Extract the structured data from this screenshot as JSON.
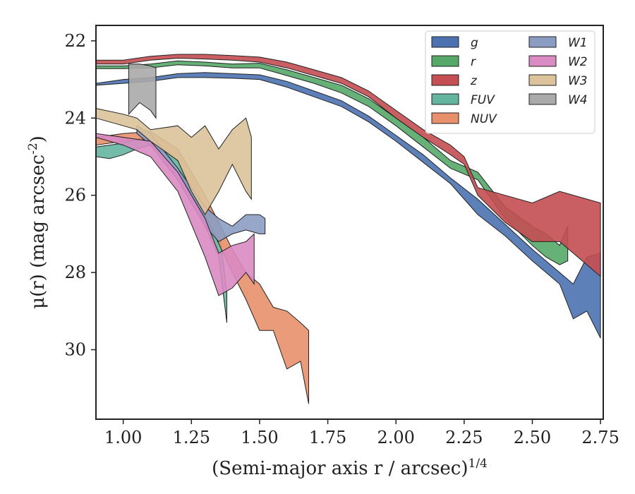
{
  "chart_data": {
    "type": "area",
    "title": "",
    "xlabel": "(Semi-major axis r / arcsec)^{1/4}",
    "ylabel": "μ(r) (mag arcsec^{-2})",
    "xlim": [
      0.9,
      2.76
    ],
    "ylim": [
      31.8,
      21.6
    ],
    "y_inverted": true,
    "xticks": [
      1.0,
      1.25,
      1.5,
      1.75,
      2.0,
      2.25,
      2.5,
      2.75
    ],
    "xtick_labels": [
      "1.00",
      "1.25",
      "1.50",
      "1.75",
      "2.00",
      "2.25",
      "2.50",
      "2.75"
    ],
    "yticks": [
      22,
      24,
      26,
      28,
      30
    ],
    "ytick_labels": [
      "22",
      "24",
      "26",
      "28",
      "30"
    ],
    "grid": false,
    "legend_position": "top-right",
    "legend_columns": 2,
    "series": [
      {
        "name": "g",
        "color": "#4c72b0",
        "x": [
          0.9,
          1.0,
          1.1,
          1.2,
          1.3,
          1.4,
          1.5,
          1.6,
          1.7,
          1.8,
          1.9,
          2.0,
          2.1,
          2.2,
          2.3,
          2.4,
          2.5,
          2.6,
          2.65,
          2.7,
          2.75
        ],
        "top": [
          23.1,
          23.0,
          22.95,
          22.85,
          22.82,
          22.85,
          22.88,
          23.05,
          23.3,
          23.55,
          23.95,
          24.45,
          24.95,
          25.55,
          26.1,
          26.75,
          27.4,
          28.0,
          28.3,
          27.6,
          27.5
        ],
        "bot": [
          23.15,
          23.1,
          23.05,
          22.95,
          22.95,
          22.97,
          23.0,
          23.2,
          23.45,
          23.7,
          24.1,
          24.6,
          25.15,
          25.7,
          26.5,
          27.05,
          27.7,
          28.3,
          29.2,
          29.0,
          29.7
        ]
      },
      {
        "name": "r",
        "color": "#55a868",
        "x": [
          0.9,
          1.0,
          1.1,
          1.2,
          1.3,
          1.4,
          1.5,
          1.6,
          1.7,
          1.8,
          1.9,
          2.0,
          2.1,
          2.2,
          2.3,
          2.4,
          2.5,
          2.55,
          2.6,
          2.63
        ],
        "top": [
          22.65,
          22.65,
          22.6,
          22.52,
          22.55,
          22.6,
          22.58,
          22.75,
          22.95,
          23.15,
          23.5,
          24.0,
          24.5,
          25.1,
          25.4,
          26.3,
          26.8,
          27.0,
          27.3,
          26.8
        ],
        "bot": [
          22.72,
          22.72,
          22.7,
          22.62,
          22.65,
          22.7,
          22.7,
          22.9,
          23.1,
          23.35,
          23.7,
          24.2,
          24.75,
          25.3,
          25.6,
          26.6,
          27.3,
          27.6,
          27.8,
          27.7
        ]
      },
      {
        "name": "z",
        "color": "#c44e52",
        "x": [
          0.9,
          1.0,
          1.1,
          1.2,
          1.3,
          1.4,
          1.5,
          1.6,
          1.7,
          1.8,
          1.9,
          2.0,
          2.1,
          2.2,
          2.25,
          2.3,
          2.4,
          2.5,
          2.6,
          2.75
        ],
        "top": [
          22.5,
          22.5,
          22.4,
          22.35,
          22.35,
          22.38,
          22.42,
          22.55,
          22.75,
          22.95,
          23.3,
          23.8,
          24.3,
          24.7,
          25.0,
          25.8,
          26.0,
          26.2,
          25.9,
          26.2
        ],
        "bot": [
          22.6,
          22.6,
          22.5,
          22.45,
          22.47,
          22.5,
          22.55,
          22.7,
          22.9,
          23.1,
          23.45,
          24.0,
          24.5,
          24.95,
          25.2,
          26.0,
          26.7,
          27.2,
          27.2,
          28.1
        ]
      },
      {
        "name": "FUV",
        "color": "#64b5a0",
        "x": [
          0.9,
          0.95,
          1.0,
          1.05,
          1.1,
          1.15,
          1.2,
          1.25,
          1.3,
          1.35,
          1.38
        ],
        "top": [
          24.75,
          24.7,
          24.65,
          24.55,
          24.45,
          24.6,
          24.9,
          25.5,
          26.2,
          26.8,
          28.5
        ],
        "bot": [
          25.0,
          25.05,
          24.95,
          24.8,
          24.7,
          24.9,
          25.3,
          26.0,
          26.8,
          27.6,
          29.3
        ]
      },
      {
        "name": "NUV",
        "color": "#e8906c",
        "x": [
          0.9,
          1.0,
          1.1,
          1.2,
          1.3,
          1.4,
          1.45,
          1.5,
          1.55,
          1.6,
          1.65,
          1.68
        ],
        "top": [
          24.5,
          24.4,
          24.35,
          24.8,
          26.0,
          27.4,
          28.0,
          28.3,
          28.9,
          29.0,
          29.3,
          29.5
        ],
        "bot": [
          24.7,
          24.6,
          24.55,
          25.1,
          26.5,
          28.0,
          28.7,
          29.5,
          29.5,
          30.5,
          30.3,
          31.4
        ]
      },
      {
        "name": "W1",
        "color": "#8c9dc4",
        "x": [
          1.05,
          1.1,
          1.2,
          1.3,
          1.35,
          1.4,
          1.45,
          1.5,
          1.52
        ],
        "top": [
          24.2,
          24.4,
          25.3,
          26.3,
          26.6,
          26.8,
          26.5,
          26.5,
          26.6
        ],
        "bot": [
          24.4,
          24.7,
          25.6,
          26.8,
          27.2,
          27.0,
          26.9,
          27.0,
          27.0
        ]
      },
      {
        "name": "W2",
        "color": "#da8bc3",
        "x": [
          0.9,
          1.0,
          1.1,
          1.2,
          1.3,
          1.35,
          1.4,
          1.45,
          1.48
        ],
        "top": [
          24.4,
          24.5,
          24.6,
          25.4,
          26.6,
          27.5,
          27.3,
          27.2,
          27.0
        ],
        "bot": [
          24.5,
          24.7,
          25.0,
          25.9,
          27.6,
          28.6,
          28.4,
          28.0,
          28.3
        ]
      },
      {
        "name": "W3",
        "color": "#dcc39b",
        "x": [
          0.9,
          1.0,
          1.05,
          1.1,
          1.2,
          1.25,
          1.3,
          1.35,
          1.4,
          1.45,
          1.47
        ],
        "top": [
          23.75,
          23.9,
          24.0,
          24.3,
          24.2,
          24.5,
          24.2,
          24.8,
          24.3,
          24.0,
          24.5
        ],
        "bot": [
          24.0,
          24.2,
          24.3,
          24.6,
          25.1,
          25.9,
          26.5,
          25.9,
          25.2,
          25.9,
          26.1
        ]
      },
      {
        "name": "W4",
        "color": "#aaaaaa",
        "x": [
          1.02,
          1.06,
          1.1,
          1.12
        ],
        "top": [
          22.6,
          22.6,
          22.65,
          22.7
        ],
        "bot": [
          23.9,
          23.6,
          23.8,
          24.0
        ]
      }
    ]
  }
}
